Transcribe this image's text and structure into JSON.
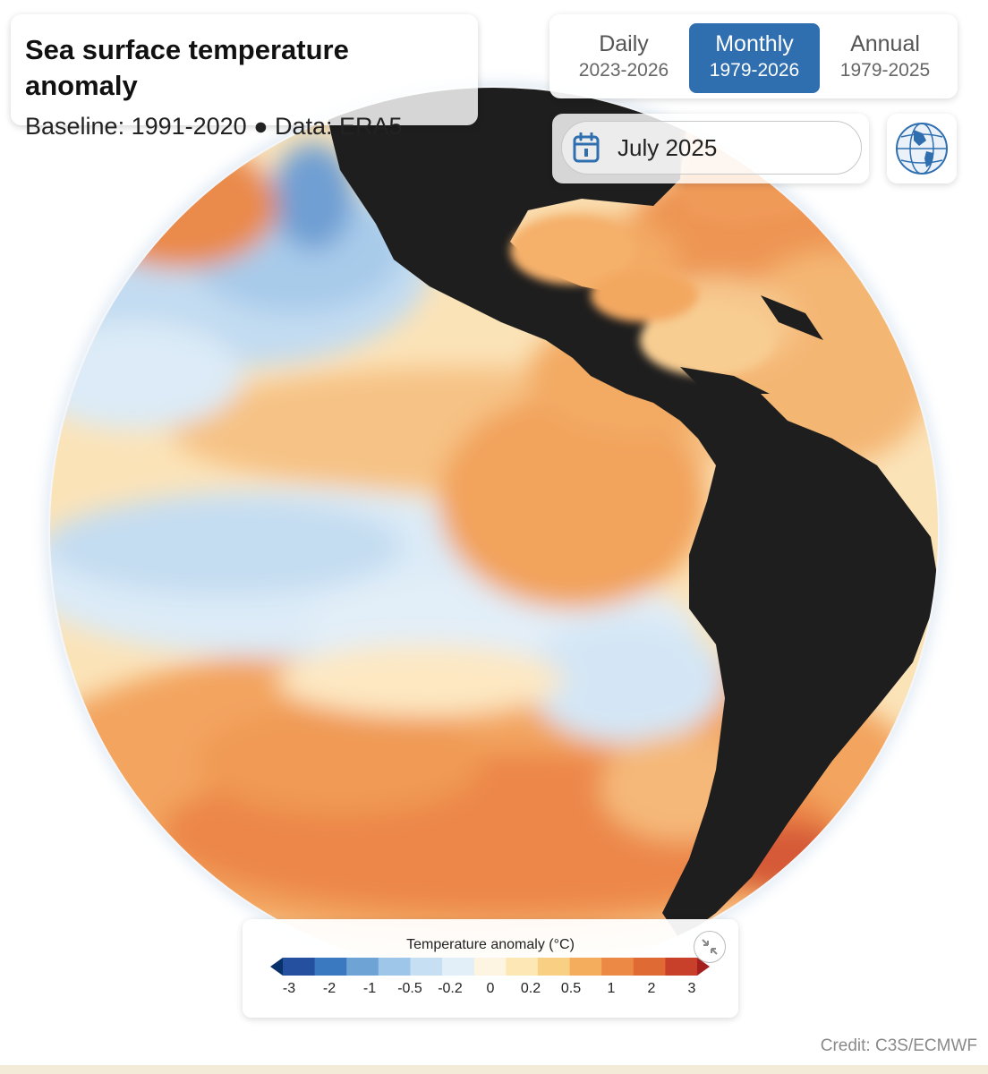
{
  "header": {
    "title": "Sea surface temperature anomaly",
    "subtitle": "Baseline: 1991-2020 ● Data: ERA5"
  },
  "frequency": {
    "options": [
      {
        "label": "Daily",
        "range": "2023-2026",
        "active": false
      },
      {
        "label": "Monthly",
        "range": "1979-2026",
        "active": true
      },
      {
        "label": "Annual",
        "range": "1979-2025",
        "active": false
      }
    ]
  },
  "date_picker": {
    "value": "July 2025",
    "icon": "calendar-icon"
  },
  "view_toggle": {
    "icon": "globe-icon"
  },
  "legend": {
    "title": "Temperature anomaly (°C)",
    "ticks": [
      "-3",
      "-2",
      "-1",
      "-0.5",
      "-0.2",
      "0",
      "0.2",
      "0.5",
      "1",
      "2",
      "3"
    ],
    "colors": [
      "#08306b",
      "#2550a0",
      "#3a78bf",
      "#6ea3d6",
      "#9ec6e8",
      "#c6dff2",
      "#e2eef8",
      "#fdf5e2",
      "#fde7b5",
      "#f9cf83",
      "#f4ad5c",
      "#ec8a45",
      "#e06a34",
      "#c9402a",
      "#a61f1f"
    ],
    "collapse_icon": "collapse-arrows-icon"
  },
  "credit": "Credit: C3S/ECMWF"
}
